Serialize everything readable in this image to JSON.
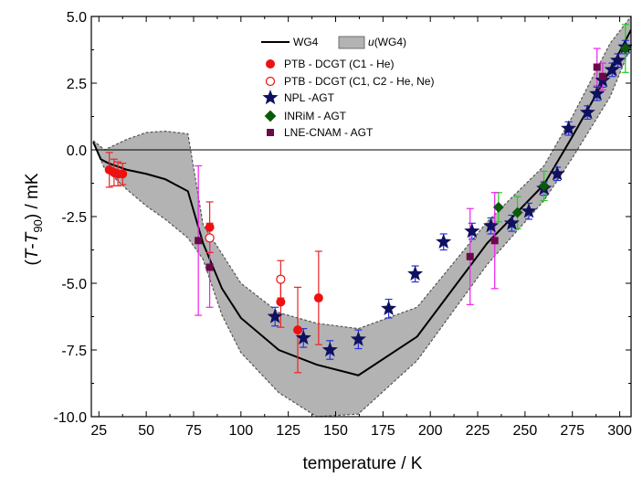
{
  "chart_data": {
    "type": "scatter",
    "xlabel": "temperature / K",
    "ylabel": {
      "prefix": "(",
      "t1": "T",
      "dash": "-",
      "t2": "T",
      "sub": "90",
      "suffix": ") / mK"
    },
    "xlim": [
      21,
      306
    ],
    "ylim": [
      -10.0,
      5.0
    ],
    "x_ticks": [
      25,
      50,
      75,
      100,
      125,
      150,
      175,
      200,
      225,
      250,
      275,
      300
    ],
    "y_ticks": [
      5.0,
      2.5,
      0.0,
      -2.5,
      -5.0,
      -7.5,
      -10.0
    ],
    "y_tick_labels": [
      "5.0",
      "2.5",
      "0.0",
      "-2.5",
      "-5.0",
      "-7.5",
      "-10.0"
    ],
    "zero_line": true,
    "grid": false,
    "legend_position": "top-center",
    "colors": {
      "wg4": "#000000",
      "band_fill": "#b3b3b3",
      "band_edge": "#555555",
      "ptb_filled": "#ee1111",
      "ptb_open": "#ee1111",
      "npl": "#101060",
      "inrim": "#0a5a0a",
      "lne": "#6a0a4a",
      "err_red": "#ee2222",
      "err_blue": "#2233dd",
      "err_green": "#22cc22",
      "err_magenta": "#ee22ee"
    },
    "series": [
      {
        "key": "wg4",
        "name": "WG4",
        "kind": "line",
        "x": [
          22,
          26,
          30,
          40,
          50,
          60,
          72,
          80,
          90,
          100,
          120,
          140,
          162,
          193,
          230,
          260,
          275,
          295,
          306
        ],
        "y": [
          0.3,
          -0.35,
          -0.5,
          -0.75,
          -0.9,
          -1.1,
          -1.55,
          -3.5,
          -5.2,
          -6.3,
          -7.5,
          -8.05,
          -8.45,
          -7.0,
          -3.5,
          -1.3,
          0.5,
          3.0,
          4.5
        ]
      },
      {
        "key": "u_wg4",
        "name": "u(WG4)",
        "name_italic": "u",
        "name_rest": "(WG4)",
        "kind": "band",
        "upper": {
          "x": [
            22,
            28,
            40,
            50,
            60,
            72,
            80,
            90,
            100,
            120,
            140,
            162,
            193,
            230,
            260,
            275,
            295,
            306
          ],
          "y": [
            0.35,
            0.0,
            0.4,
            0.65,
            0.7,
            0.6,
            -2.8,
            -3.9,
            -5.0,
            -6.1,
            -6.5,
            -6.7,
            -5.9,
            -2.7,
            -0.6,
            1.25,
            4.0,
            5.0
          ]
        },
        "lower": {
          "x": [
            22,
            28,
            40,
            50,
            60,
            72,
            80,
            90,
            100,
            120,
            140,
            162,
            193,
            230,
            260,
            275,
            295,
            306
          ],
          "y": [
            0.25,
            -0.7,
            -1.5,
            -2.1,
            -2.6,
            -3.3,
            -4.1,
            -6.2,
            -7.6,
            -9.1,
            -10.0,
            -9.9,
            -7.9,
            -4.3,
            -1.9,
            -0.3,
            2.0,
            3.9
          ]
        }
      },
      {
        "key": "ptb_filled",
        "name": "PTB - DCGT (C1 - He)",
        "marker": "circle-filled",
        "err_color": "err_red",
        "points": [
          [
            30.5,
            -0.75,
            0.65
          ],
          [
            33,
            -0.85,
            0.5
          ],
          [
            35,
            -0.9,
            0.45
          ],
          [
            37.5,
            -0.9,
            0.4
          ],
          [
            83.5,
            -2.9,
            0.95
          ],
          [
            121,
            -5.7,
            0.95
          ],
          [
            130,
            -6.75,
            1.6
          ],
          [
            141,
            -5.55,
            1.75
          ]
        ]
      },
      {
        "key": "ptb_open",
        "name": "PTB - DCGT (C1, C2 - He, Ne)",
        "marker": "circle-open",
        "err_color": "err_red",
        "points": [
          [
            83.5,
            -3.3,
            0.55
          ],
          [
            121,
            -4.85,
            0.7
          ]
        ]
      },
      {
        "key": "npl",
        "name": "NPL -AGT",
        "marker": "star",
        "err_color": "err_blue",
        "points": [
          [
            118,
            -6.25,
            0.35
          ],
          [
            133,
            -7.05,
            0.35
          ],
          [
            147,
            -7.5,
            0.35
          ],
          [
            162,
            -7.1,
            0.35
          ],
          [
            178,
            -5.95,
            0.35
          ],
          [
            192,
            -4.65,
            0.3
          ],
          [
            207,
            -3.45,
            0.3
          ],
          [
            222,
            -3.05,
            0.3
          ],
          [
            232,
            -2.85,
            0.3
          ],
          [
            243,
            -2.75,
            0.3
          ],
          [
            252,
            -2.3,
            0.3
          ],
          [
            260,
            -1.45,
            0.25
          ],
          [
            267,
            -0.9,
            0.25
          ],
          [
            273,
            0.8,
            0.25
          ],
          [
            283,
            1.4,
            0.25
          ],
          [
            288,
            2.1,
            0.25
          ],
          [
            291,
            2.6,
            0.25
          ],
          [
            296,
            3.0,
            0.25
          ],
          [
            299,
            3.35,
            0.25
          ],
          [
            303,
            3.85,
            0.25
          ]
        ]
      },
      {
        "key": "inrim",
        "name": "INRiM - AGT",
        "marker": "diamond",
        "err_color": "err_green",
        "points": [
          [
            236,
            -2.15,
            0.55
          ],
          [
            246,
            -2.35,
            0.6
          ],
          [
            260,
            -1.35,
            0.55
          ],
          [
            303,
            3.8,
            0.9
          ]
        ]
      },
      {
        "key": "lne",
        "name": "LNE-CNAM - AGT",
        "marker": "square",
        "err_color": "err_magenta",
        "points": [
          [
            77.5,
            -3.4,
            2.8
          ],
          [
            83.5,
            -4.4,
            1.5
          ],
          [
            221,
            -4.0,
            1.8
          ],
          [
            234,
            -3.4,
            1.8
          ],
          [
            288,
            3.1,
            0.7
          ],
          [
            291,
            2.75,
            0.5
          ]
        ]
      }
    ]
  }
}
